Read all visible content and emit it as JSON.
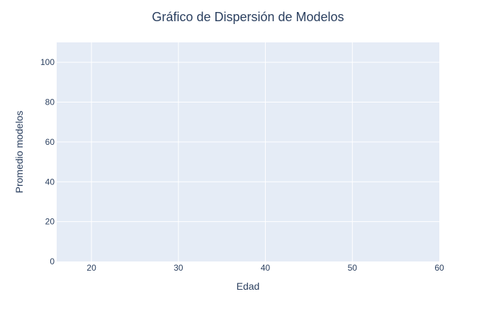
{
  "chart_data": {
    "type": "scatter",
    "title": "Gráfico de Dispersión de Modelos",
    "xlabel": "Edad",
    "ylabel": "Promedio modelos",
    "xlim": [
      16,
      60
    ],
    "ylim": [
      0,
      110
    ],
    "x_ticks": [
      20,
      30,
      40,
      50,
      60
    ],
    "y_ticks": [
      0,
      20,
      40,
      60,
      80,
      100
    ],
    "x_tick_labels": [
      "20",
      "30",
      "40",
      "50",
      "60"
    ],
    "y_tick_labels": [
      "0",
      "20",
      "40",
      "60",
      "80",
      "100"
    ],
    "series": [
      {
        "x": [],
        "y": []
      }
    ],
    "grid": true,
    "legend": false
  },
  "colors": {
    "plot_background": "#e5ecf6",
    "grid": "#ffffff",
    "text": "#2a3f5f",
    "paper": "#ffffff"
  }
}
